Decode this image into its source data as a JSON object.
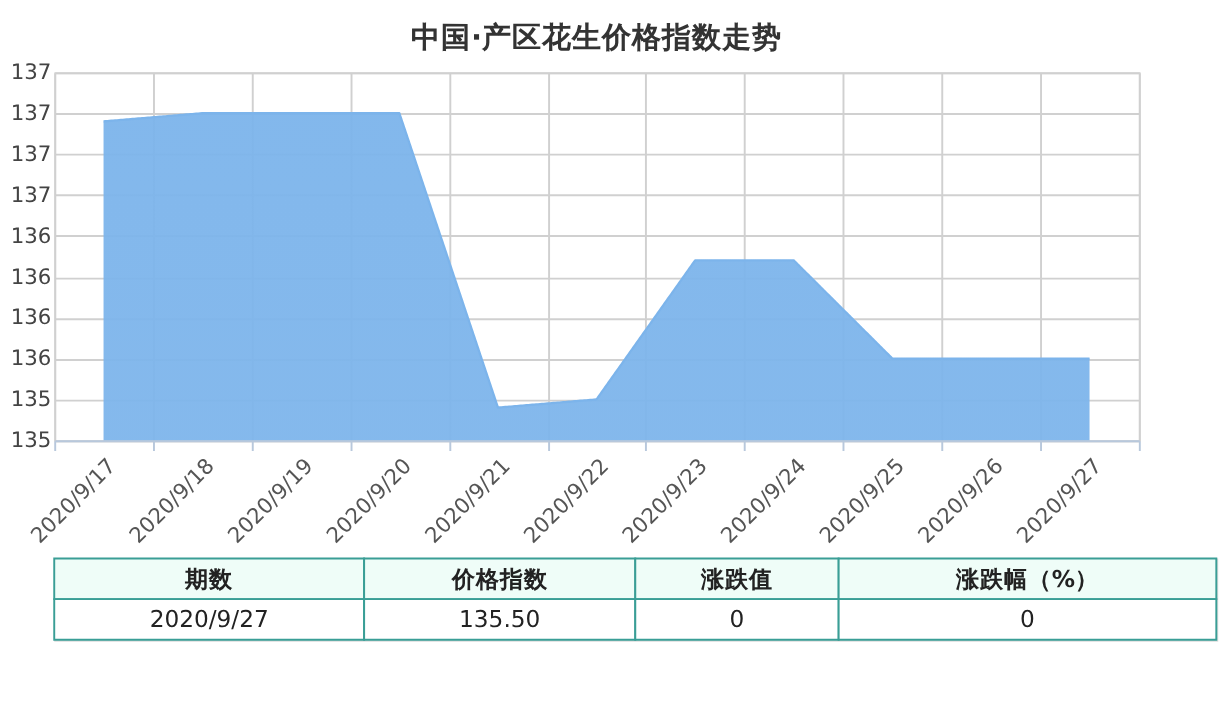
{
  "chart_data": {
    "type": "area",
    "title": "中国·产区花生价格指数走势",
    "categories": [
      "2020/9/17",
      "2020/9/18",
      "2020/9/19",
      "2020/9/20",
      "2020/9/21",
      "2020/9/22",
      "2020/9/23",
      "2020/9/24",
      "2020/9/25",
      "2020/9/26",
      "2020/9/27"
    ],
    "series": [
      {
        "color": "#7cb4eb",
        "values": [
          136.95,
          137.0,
          137.0,
          137.0,
          135.2,
          135.25,
          136.1,
          136.1,
          135.5,
          135.5,
          135.5
        ]
      }
    ],
    "ylim": [
      135,
      137.25
    ],
    "yticks": [
      {
        "value": 135,
        "label": "135"
      },
      {
        "value": 135.25,
        "label": "135"
      },
      {
        "value": 135.5,
        "label": "136"
      },
      {
        "value": 135.75,
        "label": "136"
      },
      {
        "value": 136,
        "label": "136"
      },
      {
        "value": 136.25,
        "label": "136"
      },
      {
        "value": 136.5,
        "label": "137"
      },
      {
        "value": 136.75,
        "label": "137"
      },
      {
        "value": 137,
        "label": "137"
      },
      {
        "value": 137.25,
        "label": "137"
      }
    ],
    "grid": true,
    "marker": "none",
    "annotations": [
      "期数",
      "价格指数",
      "涨跌值",
      "涨跌幅（%）",
      "2020/9/27",
      "135.50",
      "0",
      "0"
    ]
  }
}
